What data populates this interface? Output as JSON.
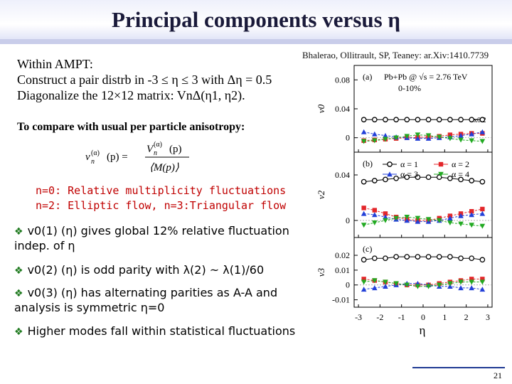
{
  "slide": {
    "title": "Principal components versus η",
    "reference": "Bhalerao, Ollitrault, SP, Teaney: ar.Xiv:1410.7739",
    "intro_lines": [
      "Within AMPT:",
      "Construct a pair distrb in -3 ≤ η ≤ 3 with Δη = 0.5",
      "Diagonalize the 12×12 matrix: VnΔ(η1, η2)."
    ],
    "compare_label": "To compare with usual per particle anisotropy:",
    "formula": {
      "lhs": "v",
      "lhs_sub": "n",
      "lhs_sup": "(α)",
      "lhs_arg": "(p) =",
      "num": "V",
      "num_sub": "n",
      "num_sup": "(α)",
      "num_arg": "(p)",
      "den": "⟨M(p)⟩"
    },
    "modes": [
      "n=0: Relative multiplicity fluctuations",
      "n=2: Elliptic flow,  n=3:Triangular flow"
    ],
    "bullets": [
      "v0(1) (η) gives global 12% relative fluctuation indep. of η",
      "v0(2) (η) is odd parity with λ(2) ~ λ(1)/60",
      "v0(3) (η) has alternating parities as A-A and analysis is symmetric η=0",
      "Higher modes fall within statistical fluctuations"
    ],
    "page_number": "21"
  },
  "figure": {
    "xlabel": "η",
    "x_ticks": [
      "-3",
      "-2",
      "-1",
      "0",
      "1",
      "2",
      "3"
    ],
    "panels": [
      {
        "label": "(a)",
        "ylabel": "v0",
        "y_ticks": [
          "0.08",
          "0.04",
          "0"
        ],
        "legend_line1": "Pb+Pb @ √s = 2.76 TeV",
        "legend_line2": "0-10%",
        "annotation": "x0.2"
      },
      {
        "label": "(b)",
        "ylabel": "v2",
        "y_ticks": [
          "0.04",
          "0"
        ],
        "legend": [
          "α = 1",
          "α = 2",
          "α = 3",
          "α = 4"
        ]
      },
      {
        "label": "(c)",
        "ylabel": "v3",
        "y_ticks": [
          "0.02",
          "0.01",
          "0",
          "-0.01"
        ]
      }
    ]
  },
  "chart_data": {
    "type": "scatter",
    "x": [
      -2.75,
      -2.25,
      -1.75,
      -1.25,
      -0.75,
      -0.25,
      0.25,
      0.75,
      1.25,
      1.75,
      2.25,
      2.75
    ],
    "xlabel": "η",
    "xlim": [
      -3.2,
      3.2
    ],
    "series_colors": {
      "a1": "#000000",
      "a2": "#e3262a",
      "a3": "#2340d8",
      "a4": "#22aa22"
    },
    "panels": [
      {
        "label": "(a)",
        "ylabel": "v0",
        "ylim": [
          -0.02,
          0.1
        ],
        "series": [
          {
            "name": "α = 1",
            "values": [
              0.025,
              0.025,
              0.025,
              0.025,
              0.025,
              0.025,
              0.025,
              0.025,
              0.025,
              0.025,
              0.025,
              0.025
            ]
          },
          {
            "name": "α = 2",
            "values": [
              -0.004,
              -0.003,
              -0.002,
              -0.001,
              0.0,
              0.0005,
              0.001,
              0.002,
              0.004,
              0.005,
              0.006,
              0.006
            ]
          },
          {
            "name": "α = 3",
            "values": [
              0.008,
              0.005,
              0.003,
              0.001,
              0.0,
              -0.001,
              -0.001,
              0.0,
              0.001,
              0.003,
              0.005,
              0.008
            ]
          },
          {
            "name": "α = 4",
            "values": [
              -0.005,
              -0.004,
              -0.002,
              0.0,
              0.002,
              0.004,
              0.003,
              0.001,
              -0.001,
              -0.003,
              -0.004,
              -0.005
            ]
          }
        ]
      },
      {
        "label": "(b)",
        "ylabel": "v2",
        "ylim": [
          -0.015,
          0.06
        ],
        "series": [
          {
            "name": "α = 1",
            "values": [
              0.034,
              0.035,
              0.036,
              0.037,
              0.038,
              0.038,
              0.038,
              0.038,
              0.037,
              0.036,
              0.035,
              0.034
            ]
          },
          {
            "name": "α = 2",
            "values": [
              0.011,
              0.009,
              0.006,
              0.003,
              0.001,
              0.0,
              0.0,
              0.002,
              0.004,
              0.006,
              0.008,
              0.01
            ]
          },
          {
            "name": "α = 3",
            "values": [
              0.006,
              0.005,
              0.003,
              0.001,
              0.0,
              -0.001,
              -0.001,
              0.0,
              0.002,
              0.004,
              0.005,
              0.006
            ]
          },
          {
            "name": "α = 4",
            "values": [
              -0.004,
              -0.002,
              0.0,
              0.002,
              0.003,
              0.002,
              0.001,
              0.0,
              -0.002,
              -0.003,
              -0.004,
              -0.005
            ]
          }
        ]
      },
      {
        "label": "(c)",
        "ylabel": "v3",
        "ylim": [
          -0.015,
          0.032
        ],
        "series": [
          {
            "name": "α = 1",
            "values": [
              0.017,
              0.018,
              0.018,
              0.019,
              0.019,
              0.019,
              0.019,
              0.019,
              0.019,
              0.018,
              0.018,
              0.017
            ]
          },
          {
            "name": "α = 2",
            "values": [
              0.004,
              0.003,
              0.002,
              0.001,
              0.0,
              0.0,
              0.0,
              0.001,
              0.002,
              0.003,
              0.004,
              0.004
            ]
          },
          {
            "name": "α = 3",
            "values": [
              -0.003,
              -0.002,
              -0.001,
              0.0,
              0.001,
              0.001,
              0.0,
              -0.001,
              -0.001,
              -0.002,
              -0.002,
              -0.003
            ]
          },
          {
            "name": "α = 4",
            "values": [
              0.002,
              0.003,
              0.002,
              0.001,
              0.0,
              -0.001,
              -0.001,
              0.0,
              0.001,
              0.002,
              0.002,
              0.002
            ]
          }
        ]
      }
    ]
  }
}
